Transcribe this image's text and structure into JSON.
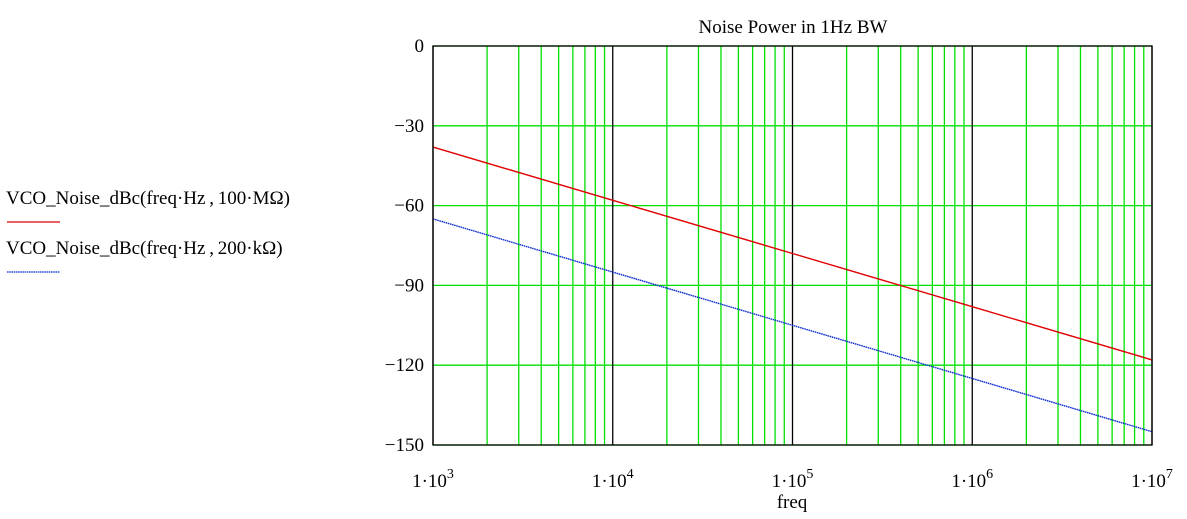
{
  "chart_data": {
    "type": "line",
    "title": "Noise Power in 1Hz BW",
    "xlabel": "freq",
    "ylabel": "",
    "x_scale": "log",
    "xlim": [
      1000,
      10000000
    ],
    "ylim": [
      -150,
      0
    ],
    "y_ticks": [
      "0",
      "−30",
      "−60",
      "−90",
      "−120",
      "−150"
    ],
    "y_tick_values": [
      0,
      -30,
      -60,
      -90,
      -120,
      -150
    ],
    "x_ticks": [
      {
        "base": "1·10",
        "exp": "3",
        "value": 1000
      },
      {
        "base": "1·10",
        "exp": "4",
        "value": 10000
      },
      {
        "base": "1·10",
        "exp": "5",
        "value": 100000
      },
      {
        "base": "1·10",
        "exp": "6",
        "value": 1000000
      },
      {
        "base": "1·10",
        "exp": "7",
        "value": 10000000
      }
    ],
    "grid": true,
    "grid_color": "#00e000",
    "decade_line_color": "#000000",
    "series": [
      {
        "name": "VCO_Noise_dBc(freq·Hz , 100·MΩ)",
        "color": "#e00000",
        "style": "solid",
        "points": [
          [
            1000,
            -38
          ],
          [
            10000,
            -58
          ],
          [
            100000,
            -78
          ],
          [
            1000000,
            -98
          ],
          [
            10000000,
            -118
          ]
        ]
      },
      {
        "name": "VCO_Noise_dBc(freq·Hz , 200·kΩ)",
        "color": "#1030d0",
        "style": "dotted",
        "points": [
          [
            1000,
            -65
          ],
          [
            10000,
            -85
          ],
          [
            100000,
            -105
          ],
          [
            1000000,
            -125
          ],
          [
            10000000,
            -145
          ]
        ]
      }
    ]
  }
}
